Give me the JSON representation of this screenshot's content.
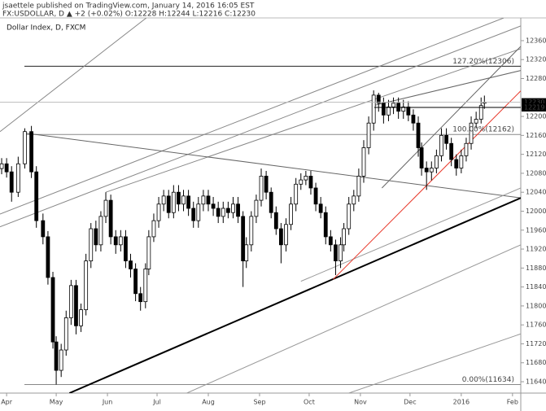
{
  "header": {
    "publisher": "jsaettele published on TradingView.com, January 14, 2016 16:05 EST",
    "quote": "FX:USDOLLAR, D ▲ +2 (+0.02%) O:12228 H:12244 L:12216 C:12230"
  },
  "chart_data": {
    "type": "candlestick",
    "title": "Dollar Index, D, FXCM",
    "x": [
      -3,
      0,
      3,
      7,
      11,
      15,
      18,
      22,
      25,
      28,
      30,
      33,
      36,
      39,
      42,
      45,
      48,
      51,
      54,
      57,
      60,
      63,
      66,
      69,
      72,
      75,
      78,
      81,
      84,
      86,
      89,
      92,
      95,
      98,
      101,
      104,
      107,
      110,
      113,
      116,
      119,
      122,
      125,
      128,
      131,
      134,
      137,
      140,
      143,
      145,
      148,
      151,
      154,
      157,
      160,
      163,
      166,
      169,
      172,
      175,
      178,
      181,
      184,
      187,
      190,
      193,
      196,
      199,
      202,
      204,
      207,
      210,
      213,
      216,
      219,
      222,
      225,
      228,
      231,
      234,
      237,
      240,
      243,
      246,
      249,
      251,
      254,
      257,
      260,
      263,
      266,
      269,
      272,
      275,
      278,
      281,
      284,
      287,
      289
    ],
    "open": [
      12090,
      12100,
      12083,
      12040,
      12100,
      12168,
      12083,
      11980,
      11946,
      11860,
      11724,
      11664,
      11707,
      11775,
      11843,
      11758,
      11792,
      11895,
      11963,
      11929,
      11989,
      12023,
      11946,
      11929,
      11946,
      11895,
      11878,
      11826,
      11809,
      11878,
      11946,
      11980,
      12015,
      12032,
      11997,
      12040,
      12015,
      12032,
      12006,
      11980,
      12015,
      12032,
      12015,
      12006,
      11989,
      12006,
      11997,
      12015,
      11989,
      11895,
      11929,
      11989,
      12023,
      12074,
      12040,
      11997,
      11963,
      11929,
      11972,
      12015,
      12057,
      12066,
      12074,
      12049,
      12015,
      11997,
      11946,
      11929,
      11895,
      11929,
      11963,
      12015,
      12032,
      12074,
      12134,
      12186,
      12245,
      12228,
      12203,
      12220,
      12228,
      12211,
      12220,
      12203,
      12186,
      12134,
      12091,
      12083,
      12091,
      12117,
      12160,
      12143,
      12109,
      12091,
      12117,
      12143,
      12186,
      12194,
      12228
    ],
    "high": [
      12112,
      12112,
      12095,
      12115,
      12175,
      12180,
      12095,
      11995,
      11958,
      11872,
      11736,
      11720,
      11790,
      11855,
      11855,
      11805,
      11910,
      11975,
      11980,
      12000,
      12040,
      12035,
      11960,
      11960,
      11960,
      11910,
      11890,
      11840,
      11890,
      11960,
      11995,
      12030,
      12045,
      12045,
      12055,
      12055,
      12045,
      12045,
      12020,
      12030,
      12045,
      12045,
      12030,
      12020,
      12020,
      12020,
      12030,
      12030,
      12000,
      11945,
      12000,
      12035,
      12090,
      12085,
      12050,
      12010,
      11975,
      11985,
      12030,
      12070,
      12080,
      12085,
      12085,
      12060,
      12030,
      12010,
      11960,
      11940,
      11945,
      11975,
      12030,
      12045,
      12090,
      12150,
      12200,
      12255,
      12250,
      12240,
      12235,
      12240,
      12240,
      12235,
      12232,
      12215,
      12200,
      12145,
      12105,
      12105,
      12130,
      12175,
      12175,
      12155,
      12120,
      12130,
      12155,
      12200,
      12210,
      12240,
      12244
    ],
    "low": [
      12078,
      12071,
      12020,
      12030,
      12090,
      12070,
      11965,
      11930,
      11845,
      11710,
      11634,
      11650,
      11695,
      11760,
      11740,
      11745,
      11780,
      11880,
      11915,
      11915,
      11975,
      11930,
      11910,
      11915,
      11880,
      11860,
      11810,
      11790,
      11795,
      11865,
      11935,
      11965,
      12000,
      11985,
      11985,
      12000,
      12000,
      11990,
      11965,
      11965,
      12000,
      12000,
      11990,
      11975,
      11975,
      11985,
      11985,
      11975,
      11840,
      11880,
      11915,
      11975,
      12010,
      12025,
      11985,
      11950,
      11890,
      11915,
      11960,
      12000,
      12045,
      12055,
      12035,
      12000,
      11985,
      11930,
      11915,
      11865,
      11880,
      11915,
      11950,
      12000,
      12020,
      12060,
      12120,
      12170,
      12210,
      12185,
      12190,
      12205,
      12195,
      12195,
      12190,
      12170,
      12115,
      12075,
      12045,
      12065,
      12080,
      12105,
      12130,
      12095,
      12075,
      12080,
      12105,
      12130,
      12175,
      12185,
      12216
    ],
    "close": [
      12100,
      12083,
      12040,
      12100,
      12168,
      12083,
      11980,
      11946,
      11860,
      11724,
      11664,
      11707,
      11775,
      11843,
      11758,
      11792,
      11895,
      11963,
      11929,
      11989,
      12023,
      11946,
      11929,
      11946,
      11895,
      11878,
      11826,
      11809,
      11878,
      11946,
      11980,
      12015,
      12032,
      11997,
      12040,
      12015,
      12032,
      12006,
      11980,
      12015,
      12032,
      12015,
      12006,
      11989,
      12006,
      11997,
      12015,
      11989,
      11895,
      11929,
      11989,
      12023,
      12074,
      12040,
      11997,
      11963,
      11929,
      11972,
      12015,
      12057,
      12066,
      12074,
      12049,
      12015,
      11997,
      11946,
      11929,
      11895,
      11929,
      11963,
      12015,
      12032,
      12074,
      12134,
      12186,
      12245,
      12228,
      12203,
      12220,
      12228,
      12211,
      12220,
      12203,
      12186,
      12134,
      12091,
      12083,
      12091,
      12117,
      12160,
      12143,
      12109,
      12091,
      12117,
      12143,
      12186,
      12194,
      12223,
      12230
    ],
    "xlim": [
      -4,
      311
    ],
    "ylim": [
      11616,
      12408
    ],
    "xticks": [
      {
        "value": 0,
        "label": "Apr"
      },
      {
        "value": 30,
        "label": "May"
      },
      {
        "value": 61,
        "label": "Jun"
      },
      {
        "value": 91,
        "label": "Jul"
      },
      {
        "value": 122,
        "label": "Aug"
      },
      {
        "value": 153,
        "label": "Sep"
      },
      {
        "value": 183,
        "label": "Oct"
      },
      {
        "value": 214,
        "label": "Nov"
      },
      {
        "value": 244,
        "label": "Dec"
      },
      {
        "value": 275,
        "label": "2016"
      },
      {
        "value": 306,
        "label": "Feb"
      }
    ],
    "yticks": [
      11640,
      11680,
      11720,
      11760,
      11800,
      11840,
      11880,
      11920,
      11960,
      12000,
      12040,
      12080,
      12120,
      12160,
      12200,
      12280,
      12320,
      12360
    ],
    "up_color": "#ffffff",
    "down_color": "#000000",
    "levels": [
      {
        "value": 12306,
        "label": "127.20%(12306)",
        "color": "#222222"
      },
      {
        "value": 12162,
        "label": "100.00%(12162)",
        "color": "#888888"
      },
      {
        "value": 11634,
        "label": "0.00%(11634)",
        "color": "#888888"
      }
    ],
    "price_lines": [
      12230,
      12219
    ],
    "drawings": [
      {
        "x": [
          -4,
          84.5
        ],
        "y": [
          12168,
          12408
        ],
        "color": "#888888",
        "width": 1
      },
      {
        "x": [
          -4,
          300.7
        ],
        "y": [
          11994,
          12408
        ],
        "color": "#888888",
        "width": 1
      },
      {
        "x": [
          -4,
          311
        ],
        "y": [
          11967,
          12391
        ],
        "color": "#888888",
        "width": 1
      },
      {
        "x": [
          60,
          311
        ],
        "y": [
          12040,
          12343
        ],
        "color": "#888888",
        "width": 1
      },
      {
        "x": [
          11,
          311
        ],
        "y": [
          12165,
          12028
        ],
        "color": "#666666",
        "width": 1
      },
      {
        "x": [
          222,
          311
        ],
        "y": [
          12223,
          12297
        ],
        "color": "#666666",
        "width": 1
      },
      {
        "x": [
          227,
          311
        ],
        "y": [
          12049,
          12348
        ],
        "color": "#666666",
        "width": 1
      },
      {
        "x": [
          109,
          311
        ],
        "y": [
          11616,
          11929
        ],
        "color": "#999999",
        "width": 1
      },
      {
        "x": [
          178,
          311
        ],
        "y": [
          11852,
          12049
        ],
        "color": "#999999",
        "width": 1
      },
      {
        "x": [
          207,
          311
        ],
        "y": [
          11616,
          11741
        ],
        "color": "#999999",
        "width": 1
      },
      {
        "x": [
          38,
          311
        ],
        "y": [
          11616,
          12028
        ],
        "color": "#000000",
        "width": 2
      },
      {
        "x": [
          197.5,
          311
        ],
        "y": [
          11856,
          12254
        ],
        "color": "#e8382a",
        "width": 1
      }
    ]
  }
}
